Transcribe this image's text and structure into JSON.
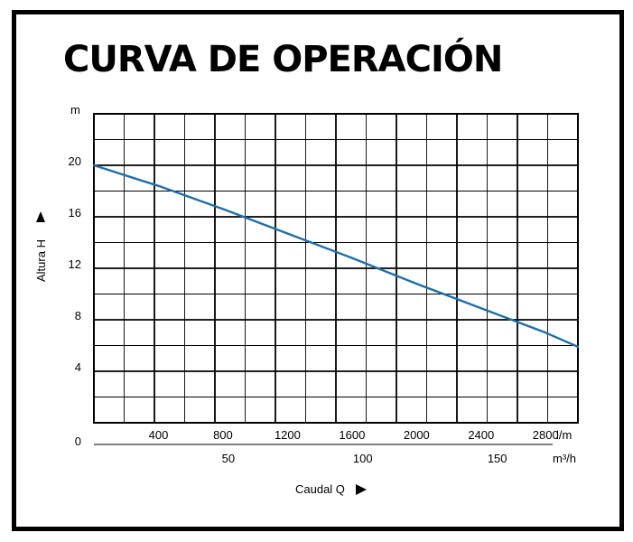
{
  "title": "CURVA DE OPERACIÓN",
  "chart_data": {
    "type": "line",
    "title": "CURVA DE OPERACIÓN",
    "ylabel": "Altura H",
    "y_unit": "m",
    "xlabel": "Caudal Q",
    "x_unit_primary": "l/m",
    "x_unit_secondary": "m³/h",
    "xlim": [
      0,
      3000
    ],
    "ylim": [
      0,
      24
    ],
    "y_ticks": [
      0,
      4,
      8,
      12,
      16,
      20
    ],
    "x_ticks_primary": [
      400,
      800,
      1200,
      1600,
      2000,
      2400,
      2800
    ],
    "x_ticks_secondary": [
      50,
      100,
      150
    ],
    "grid": true,
    "line_color": "#1f6fa8",
    "series": [
      {
        "x": [
          0,
          400,
          800,
          1200,
          1600,
          2000,
          2400,
          2800,
          3000
        ],
        "y": [
          20,
          18.4,
          16.6,
          14.7,
          12.8,
          10.8,
          8.9,
          7.0,
          5.9
        ]
      }
    ]
  }
}
